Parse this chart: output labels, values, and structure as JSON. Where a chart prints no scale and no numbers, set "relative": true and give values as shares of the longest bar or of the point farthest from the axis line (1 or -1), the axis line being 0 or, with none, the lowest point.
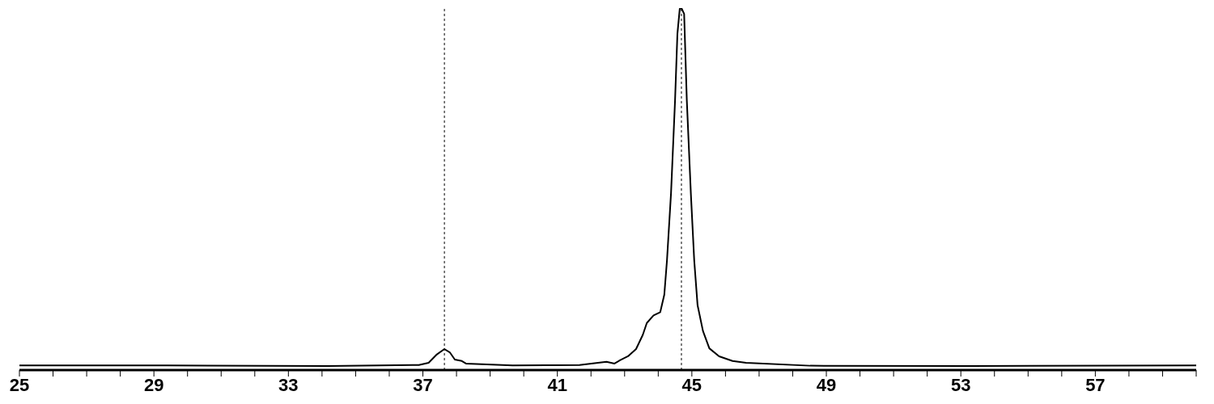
{
  "chart_data": {
    "type": "line",
    "relative": true,
    "marker": "none",
    "line_style": "solid",
    "x": [
      25.0,
      29.4,
      34.18,
      36.88,
      37.17,
      37.4,
      37.64,
      37.8,
      37.95,
      38.16,
      38.28,
      39.67,
      41.66,
      42.46,
      42.7,
      42.86,
      43.1,
      43.34,
      43.54,
      43.66,
      43.86,
      44.06,
      44.18,
      44.26,
      44.38,
      44.5,
      44.57,
      44.64,
      44.69,
      44.77,
      44.85,
      44.97,
      45.07,
      45.17,
      45.33,
      45.52,
      45.81,
      46.21,
      46.61,
      48.52,
      53.3,
      60.0
    ],
    "series": [
      {
        "color": "#000000",
        "values": [
          0.013,
          0.013,
          0.011,
          0.014,
          0.02,
          0.042,
          0.058,
          0.049,
          0.029,
          0.025,
          0.018,
          0.013,
          0.014,
          0.023,
          0.018,
          0.027,
          0.038,
          0.058,
          0.097,
          0.13,
          0.151,
          0.16,
          0.208,
          0.303,
          0.488,
          0.745,
          0.929,
          0.998,
          1,
          0.984,
          0.745,
          0.488,
          0.303,
          0.179,
          0.108,
          0.06,
          0.038,
          0.025,
          0.02,
          0.012,
          0.011,
          0.013
        ]
      }
    ],
    "xlim": [
      25,
      60
    ],
    "xticks": [
      25,
      {
        "value": 26,
        "label": null
      },
      {
        "value": 27,
        "label": null
      },
      {
        "value": 28,
        "label": null
      },
      29,
      {
        "value": 30,
        "label": null
      },
      {
        "value": 31,
        "label": null
      },
      {
        "value": 32,
        "label": null
      },
      33,
      {
        "value": 34,
        "label": null
      },
      {
        "value": 35,
        "label": null
      },
      {
        "value": 36,
        "label": null
      },
      37,
      {
        "value": 38,
        "label": null
      },
      {
        "value": 39,
        "label": null
      },
      {
        "value": 40,
        "label": null
      },
      41,
      {
        "value": 42,
        "label": null
      },
      {
        "value": 43,
        "label": null
      },
      {
        "value": 44,
        "label": null
      },
      45,
      {
        "value": 46,
        "label": null
      },
      {
        "value": 47,
        "label": null
      },
      {
        "value": 48,
        "label": null
      },
      49,
      {
        "value": 50,
        "label": null
      },
      {
        "value": 51,
        "label": null
      },
      {
        "value": 52,
        "label": null
      },
      53,
      {
        "value": 54,
        "label": null
      },
      {
        "value": 55,
        "label": null
      },
      {
        "value": 56,
        "label": null
      },
      57,
      {
        "value": 58,
        "label": null
      },
      {
        "value": 59,
        "label": null
      },
      {
        "value": 60,
        "label": null
      }
    ],
    "ref_lines": [
      {
        "axis": "x",
        "value": 37.64,
        "color": "#000000",
        "line_style": "dashed"
      },
      {
        "axis": "x",
        "value": 44.69,
        "color": "#000000",
        "line_style": "dashed"
      }
    ]
  }
}
